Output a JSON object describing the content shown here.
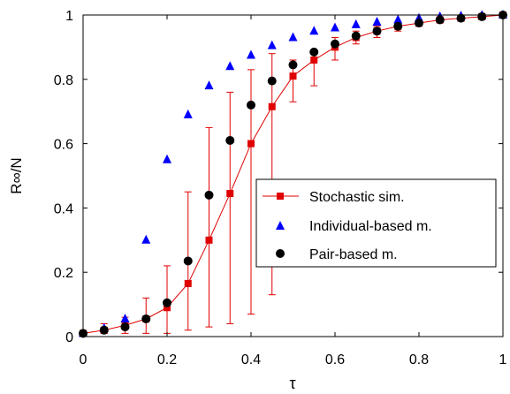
{
  "chart_data": {
    "type": "scatter",
    "xlabel": "τ",
    "ylabel": "R∞/N",
    "xlim": [
      0,
      1
    ],
    "ylim": [
      0,
      1
    ],
    "xticks": [
      0,
      0.2,
      0.4,
      0.6,
      0.8,
      1
    ],
    "yticks": [
      0,
      0.2,
      0.4,
      0.6,
      0.8,
      1
    ],
    "x_tick_labels": [
      "0",
      "0.2",
      "0.4",
      "0.6",
      "0.8",
      "1"
    ],
    "y_tick_labels": [
      "0",
      "0.2",
      "0.4",
      "0.6",
      "0.8",
      "1"
    ],
    "grid": false,
    "legend_position": "center-right",
    "series": [
      {
        "name": "Stochastic sim.",
        "style": "line-square",
        "color": "#e00000",
        "x": [
          0,
          0.05,
          0.1,
          0.15,
          0.2,
          0.25,
          0.3,
          0.35,
          0.4,
          0.45,
          0.5,
          0.55,
          0.6,
          0.65,
          0.7,
          0.75,
          0.8,
          0.85,
          0.9,
          0.95,
          1
        ],
        "y": [
          0.01,
          0.02,
          0.035,
          0.055,
          0.09,
          0.165,
          0.3,
          0.445,
          0.6,
          0.715,
          0.81,
          0.86,
          0.9,
          0.93,
          0.95,
          0.965,
          0.975,
          0.985,
          0.99,
          0.995,
          1.0
        ],
        "err_low": [
          0.005,
          0.01,
          0.01,
          0.01,
          0.01,
          0.02,
          0.03,
          0.04,
          0.07,
          0.13,
          0.73,
          0.78,
          0.86,
          0.91,
          0.93,
          0.95,
          0.965,
          0.975,
          0.985,
          0.99,
          0.995
        ],
        "err_high": [
          0.015,
          0.04,
          0.06,
          0.12,
          0.22,
          0.45,
          0.65,
          0.76,
          0.83,
          0.88,
          0.86,
          0.89,
          0.93,
          0.95,
          0.965,
          0.975,
          0.985,
          0.99,
          0.995,
          0.998,
          1.0
        ]
      },
      {
        "name": "Individual-based m.",
        "style": "triangle",
        "color": "#0000ff",
        "x": [
          0,
          0.05,
          0.1,
          0.15,
          0.2,
          0.25,
          0.3,
          0.35,
          0.4,
          0.45,
          0.5,
          0.55,
          0.6,
          0.65,
          0.7,
          0.75,
          0.8,
          0.85,
          0.9,
          0.95,
          1
        ],
        "y": [
          0.01,
          0.025,
          0.055,
          0.3,
          0.55,
          0.69,
          0.78,
          0.84,
          0.875,
          0.905,
          0.93,
          0.95,
          0.96,
          0.97,
          0.978,
          0.985,
          0.99,
          0.995,
          0.997,
          0.999,
          1.0
        ]
      },
      {
        "name": "Pair-based m.",
        "style": "circle",
        "color": "#000000",
        "x": [
          0,
          0.05,
          0.1,
          0.15,
          0.2,
          0.25,
          0.3,
          0.35,
          0.4,
          0.45,
          0.5,
          0.55,
          0.6,
          0.65,
          0.7,
          0.75,
          0.8,
          0.85,
          0.9,
          0.95,
          1
        ],
        "y": [
          0.01,
          0.02,
          0.03,
          0.055,
          0.105,
          0.235,
          0.44,
          0.61,
          0.72,
          0.795,
          0.845,
          0.885,
          0.91,
          0.935,
          0.95,
          0.965,
          0.975,
          0.985,
          0.99,
          0.995,
          1.0
        ]
      }
    ]
  }
}
